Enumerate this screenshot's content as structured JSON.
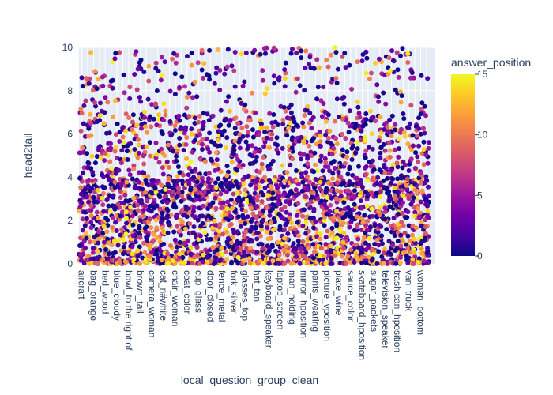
{
  "chart_data": {
    "type": "scatter",
    "xlabel": "local_question_group_clean",
    "ylabel": "head2tail",
    "ylim": [
      0,
      10
    ],
    "yticks": [
      0,
      2,
      4,
      6,
      8,
      10
    ],
    "colorbar": {
      "title": "answer_position",
      "range": [
        0,
        15
      ],
      "ticks": [
        0,
        5,
        10,
        15
      ],
      "colorscale": [
        "#0d0887",
        "#46039f",
        "#7201a8",
        "#9c179e",
        "#bd3786",
        "#d8576b",
        "#ed7953",
        "#fb9f3a",
        "#fdca26",
        "#f0f921"
      ]
    },
    "x_tick_labels": [
      "aircraft",
      "bag_orange",
      "bed_wood",
      "blue_cloudy",
      "bowl_to the right of",
      "brown_tall",
      "camera_woman",
      "cat_n#white",
      "chair_woman",
      "coat_color",
      "cup_glass",
      "door_closed",
      "fence_metal",
      "fork_silver",
      "glasses_top",
      "hat_tan",
      "keyboard_speaker",
      "laptop_screen",
      "man_holding",
      "mirror_hposition",
      "pants_wearing",
      "picture_vposition",
      "plate_wine",
      "sauce_color",
      "skateboard_hposition",
      "sugar_packets",
      "television_speaker",
      "trash can_hposition",
      "van_truck",
      "woman_bottom"
    ],
    "x_category_count": 60,
    "grid": true,
    "legend": "right"
  }
}
